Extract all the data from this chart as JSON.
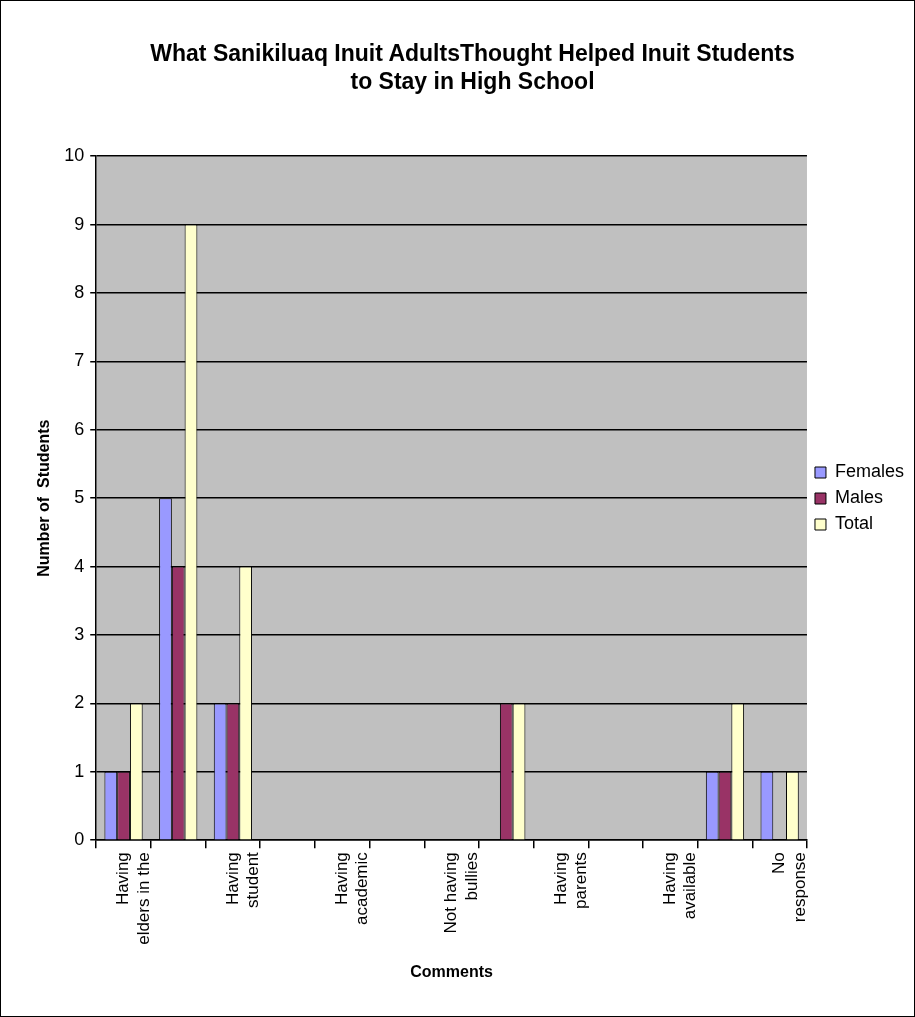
{
  "chart_data": {
    "type": "bar",
    "title": "What Sanikiluaq Inuit AdultsThought Helped Inuit Students to Stay in High School",
    "xlabel": "Comments",
    "ylabel": "Number of  Students",
    "categories": [
      "Having\nelders in the",
      null,
      "Having\nstudent",
      null,
      "Having\nacademic",
      null,
      "Not having\nbullies",
      null,
      "Having\nparents",
      null,
      "Having\navailable",
      null,
      "No\nresponse"
    ],
    "series": [
      {
        "name": "Females",
        "color": "#9999ff",
        "values": [
          1,
          5,
          2,
          0,
          0,
          0,
          0,
          0,
          0,
          0,
          0,
          1,
          1
        ]
      },
      {
        "name": "Males",
        "color": "#993366",
        "values": [
          1,
          4,
          2,
          0,
          0,
          0,
          0,
          2,
          0,
          0,
          0,
          1,
          0
        ]
      },
      {
        "name": "Total",
        "color": "#ffffcc",
        "values": [
          2,
          9,
          4,
          0,
          0,
          0,
          0,
          2,
          0,
          0,
          0,
          2,
          1
        ]
      }
    ],
    "ylim": [
      0,
      10
    ],
    "yticks": [
      0,
      1,
      2,
      3,
      4,
      5,
      6,
      7,
      8,
      9,
      10
    ],
    "grid": "y",
    "legend": "right"
  }
}
